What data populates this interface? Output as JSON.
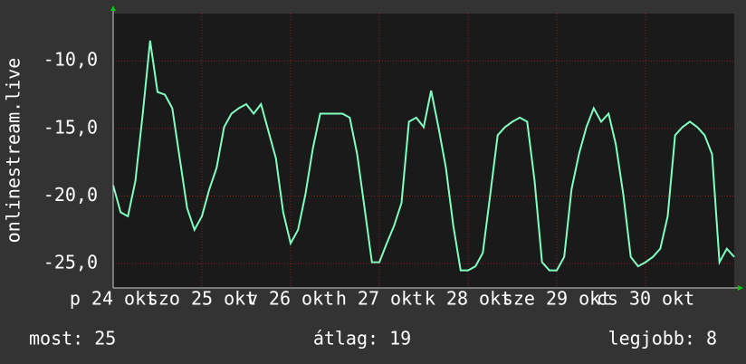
{
  "chart_data": {
    "type": "line",
    "y_label": "onlinestream.live",
    "x": [
      0,
      2,
      4,
      6,
      8,
      10,
      12,
      14,
      16,
      18,
      20,
      22,
      24,
      26,
      28,
      30,
      32,
      34,
      36,
      38,
      40,
      42,
      44,
      46,
      48,
      50,
      52,
      54,
      56,
      58,
      60,
      62,
      64,
      66,
      68,
      70,
      72,
      74,
      76,
      78,
      80,
      82,
      84,
      86,
      88,
      90,
      92,
      94,
      96,
      98,
      100,
      102,
      104,
      106,
      108,
      110,
      112,
      114,
      116,
      118,
      120,
      122,
      124,
      126,
      128,
      130,
      132,
      134,
      136,
      138,
      140,
      142,
      144,
      146,
      148,
      150,
      152,
      154,
      156,
      158,
      160,
      162,
      164,
      166,
      168
    ],
    "values": [
      -19.2,
      -21.2,
      -21.5,
      -18.9,
      -13.9,
      -8.5,
      -12.3,
      -12.5,
      -13.5,
      -17.2,
      -20.9,
      -22.5,
      -21.5,
      -19.5,
      -17.9,
      -14.9,
      -13.9,
      -13.5,
      -13.2,
      -13.9,
      -13.2,
      -15.2,
      -17.2,
      -21.2,
      -23.5,
      -22.5,
      -19.9,
      -16.5,
      -13.9,
      -13.9,
      -13.9,
      -13.9,
      -14.2,
      -16.9,
      -20.9,
      -24.9,
      -24.9,
      -23.5,
      -22.2,
      -20.5,
      -14.5,
      -14.2,
      -14.9,
      -12.2,
      -14.9,
      -17.9,
      -22.2,
      -25.5,
      -25.5,
      -25.2,
      -24.2,
      -19.9,
      -15.5,
      -14.9,
      -14.5,
      -14.2,
      -14.5,
      -18.9,
      -24.9,
      -25.5,
      -25.5,
      -24.5,
      -19.5,
      -16.9,
      -14.9,
      -13.5,
      -14.5,
      -13.9,
      -16.2,
      -19.9,
      -24.5,
      -25.2,
      -24.9,
      -24.5,
      -23.9,
      -21.5,
      -15.5,
      -14.9,
      -14.5,
      -14.9,
      -15.5,
      -16.9,
      -24.9,
      -23.9,
      -24.5
    ],
    "color": "#80ffc0",
    "xlim": [
      0,
      168
    ],
    "xticks": [
      {
        "value": 0,
        "label": "p 24 okt"
      },
      {
        "value": 24,
        "label": "szo 25 okt"
      },
      {
        "value": 48,
        "label": "v 26 okt"
      },
      {
        "value": 72,
        "label": "h 27 okt"
      },
      {
        "value": 96,
        "label": "k 28 okt"
      },
      {
        "value": 120,
        "label": "sze 29 okt"
      },
      {
        "value": 144,
        "label": "cs 30 okt"
      }
    ],
    "ylim": [
      -26.8,
      -6.5
    ],
    "yticks": [
      {
        "value": -25,
        "label": "-25,0"
      },
      {
        "value": -20,
        "label": "-20,0"
      },
      {
        "value": -15,
        "label": "-15,0"
      },
      {
        "value": -10,
        "label": "-10,0"
      }
    ],
    "grid": true,
    "stats": [
      "most: 25",
      "átlag: 19",
      "legjobb: 8"
    ]
  }
}
